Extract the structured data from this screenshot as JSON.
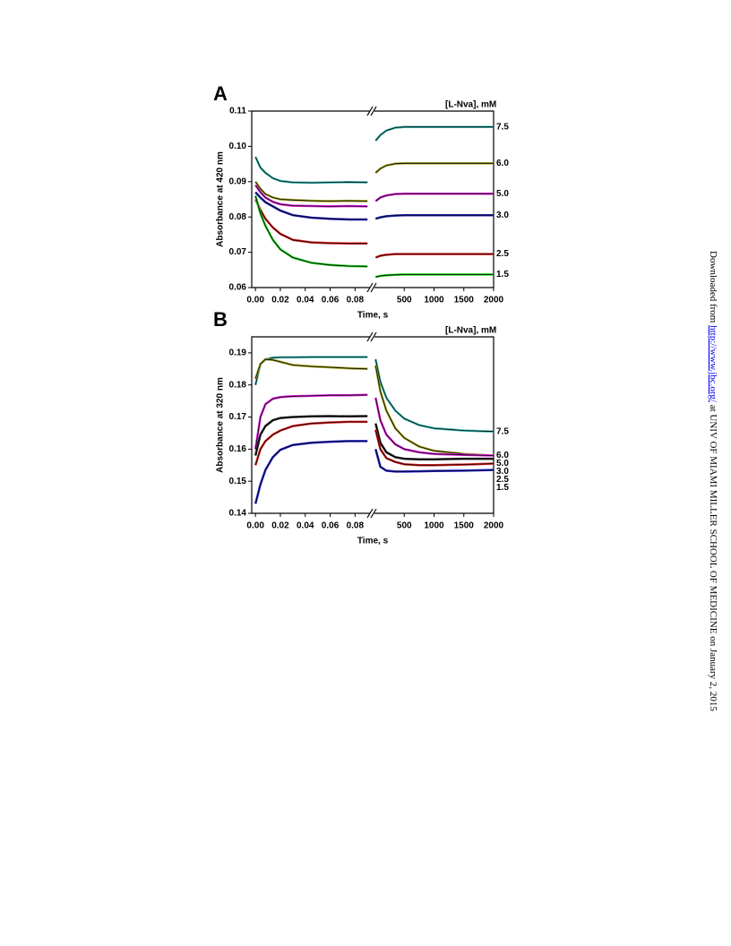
{
  "chart_data": [
    {
      "type": "line",
      "panel": "A",
      "ylabel": "Absorbance at 420 nm",
      "xlabel": "Time, s",
      "legend_title": "[L-Nva], mM",
      "ylim": [
        0.06,
        0.11
      ],
      "yticks": [
        0.06,
        0.07,
        0.08,
        0.09,
        {
          "value": 0.1,
          "label": "0.10"
        },
        0.11
      ],
      "x": [
        0,
        0.004,
        0.008,
        0.014,
        0.02,
        0.03,
        0.045,
        0.06,
        0.075,
        0.09
      ],
      "xlim": [
        -0.003,
        0.092
      ],
      "xticks": [
        {
          "value": 0,
          "label": "0.00"
        },
        0.02,
        0.04,
        0.06,
        0.08
      ],
      "x2": [
        20,
        100,
        200,
        350,
        500,
        750,
        1000,
        1500,
        2000
      ],
      "x2lim": [
        0,
        2000
      ],
      "x2ticks": [
        500,
        1000,
        1500,
        2000
      ],
      "series": [
        {
          "name": "7.5",
          "color": "#3fb8b0",
          "values": [
            0.097,
            0.094,
            0.0925,
            0.091,
            0.0902,
            0.0898,
            0.0897,
            0.0898,
            0.0899,
            0.0898
          ],
          "values2": [
            0.1016,
            0.1032,
            0.1045,
            0.1053,
            0.1055,
            0.1055,
            0.1055,
            0.1055,
            0.1055
          ]
        },
        {
          "name": "6.0",
          "color": "#a0a020",
          "values": [
            0.09,
            0.088,
            0.0865,
            0.0855,
            0.085,
            0.0848,
            0.0846,
            0.0845,
            0.0846,
            0.0845
          ],
          "values2": [
            0.0925,
            0.0937,
            0.0946,
            0.0951,
            0.0952,
            0.0952,
            0.0952,
            0.0952,
            0.0952
          ]
        },
        {
          "name": "5.0",
          "color": "#e020e0",
          "values": [
            0.089,
            0.087,
            0.0855,
            0.0843,
            0.0836,
            0.0832,
            0.0831,
            0.083,
            0.0831,
            0.083
          ],
          "values2": [
            0.0845,
            0.0855,
            0.0861,
            0.0865,
            0.0866,
            0.0866,
            0.0866,
            0.0866,
            0.0866
          ]
        },
        {
          "name": "3.0",
          "color": "#2020c0",
          "values": [
            0.087,
            0.0855,
            0.0842,
            0.083,
            0.0818,
            0.0805,
            0.0798,
            0.0795,
            0.0793,
            0.0793
          ],
          "values2": [
            0.0795,
            0.0799,
            0.0802,
            0.0804,
            0.0805,
            0.0805,
            0.0805,
            0.0805,
            0.0805
          ]
        },
        {
          "name": "2.5",
          "color": "#e02020",
          "values": [
            0.085,
            0.082,
            0.0795,
            0.077,
            0.0752,
            0.0735,
            0.0728,
            0.0726,
            0.0725,
            0.0725
          ],
          "values2": [
            0.0685,
            0.069,
            0.0693,
            0.0695,
            0.0695,
            0.0695,
            0.0695,
            0.0695,
            0.0695
          ]
        },
        {
          "name": "1.5",
          "color": "#20d020",
          "values": [
            0.086,
            0.081,
            0.0775,
            0.0735,
            0.0708,
            0.0685,
            0.067,
            0.0664,
            0.0661,
            0.066
          ],
          "values2": [
            0.063,
            0.0633,
            0.0635,
            0.0636,
            0.0637,
            0.0637,
            0.0637,
            0.0637,
            0.0637
          ]
        }
      ]
    },
    {
      "type": "line",
      "panel": "B",
      "ylabel": "Absorbance at 320 nm",
      "xlabel": "Time, s",
      "legend_title": "[L-Nva], mM",
      "ylim": [
        0.14,
        0.195
      ],
      "yticks": [
        0.14,
        0.15,
        0.16,
        0.17,
        0.18,
        0.19
      ],
      "x": [
        0,
        0.004,
        0.008,
        0.014,
        0.02,
        0.03,
        0.045,
        0.06,
        0.075,
        0.09
      ],
      "xlim": [
        -0.003,
        0.092
      ],
      "xticks": [
        {
          "value": 0,
          "label": "0.00"
        },
        0.02,
        0.04,
        0.06,
        0.08
      ],
      "x2": [
        20,
        100,
        200,
        350,
        500,
        750,
        1000,
        1500,
        2000
      ],
      "x2lim": [
        0,
        2000
      ],
      "x2ticks": [
        500,
        1000,
        1500,
        2000
      ],
      "series": [
        {
          "name": "7.5",
          "color": "#3fb8b0",
          "values": [
            0.18,
            0.1865,
            0.188,
            0.1885,
            0.1886,
            0.1886,
            0.1887,
            0.1887,
            0.1887,
            0.1887
          ],
          "values2": [
            0.188,
            0.181,
            0.176,
            0.172,
            0.1695,
            0.1675,
            0.1665,
            0.1658,
            0.1655
          ]
        },
        {
          "name": "6.0",
          "color": "#a0a020",
          "values": [
            0.182,
            0.1865,
            0.188,
            0.1878,
            0.1872,
            0.1862,
            0.1858,
            0.1855,
            0.1852,
            0.185
          ],
          "values2": [
            0.186,
            0.178,
            0.172,
            0.1665,
            0.1635,
            0.1608,
            0.1595,
            0.1585,
            0.158
          ]
        },
        {
          "name": "5.0",
          "color": "#e020e0",
          "values": [
            0.16,
            0.17,
            0.174,
            0.1757,
            0.1762,
            0.1765,
            0.1766,
            0.1768,
            0.1768,
            0.1769
          ],
          "values2": [
            0.176,
            0.169,
            0.1645,
            0.1615,
            0.16,
            0.159,
            0.1585,
            0.1582,
            0.158
          ]
        },
        {
          "name": "3.0",
          "color": "#202020",
          "values": [
            0.158,
            0.1645,
            0.1672,
            0.169,
            0.1697,
            0.17,
            0.1702,
            0.1703,
            0.1702,
            0.1703
          ],
          "values2": [
            0.168,
            0.162,
            0.159,
            0.1575,
            0.157,
            0.1568,
            0.1568,
            0.157,
            0.157
          ]
        },
        {
          "name": "2.5",
          "color": "#e02020",
          "values": [
            0.155,
            0.16,
            0.1625,
            0.1645,
            0.1658,
            0.1672,
            0.168,
            0.1683,
            0.1685,
            0.1685
          ],
          "values2": [
            0.166,
            0.16,
            0.1572,
            0.156,
            0.1553,
            0.155,
            0.155,
            0.1552,
            0.1555
          ]
        },
        {
          "name": "1.5",
          "color": "#2020d0",
          "values": [
            0.143,
            0.149,
            0.1535,
            0.1575,
            0.1598,
            0.1613,
            0.162,
            0.1623,
            0.1625,
            0.1625
          ],
          "values2": [
            0.16,
            0.1545,
            0.1533,
            0.153,
            0.153,
            0.1531,
            0.1532,
            0.1533,
            0.1535
          ]
        }
      ]
    }
  ],
  "watermark": {
    "prefix": "Downloaded from ",
    "link": "http://www.jbc.org/",
    "suffix": " at UNIV OF MIAMI MILLER SCHOOL OF MEDICINE on January 2, 2015"
  }
}
